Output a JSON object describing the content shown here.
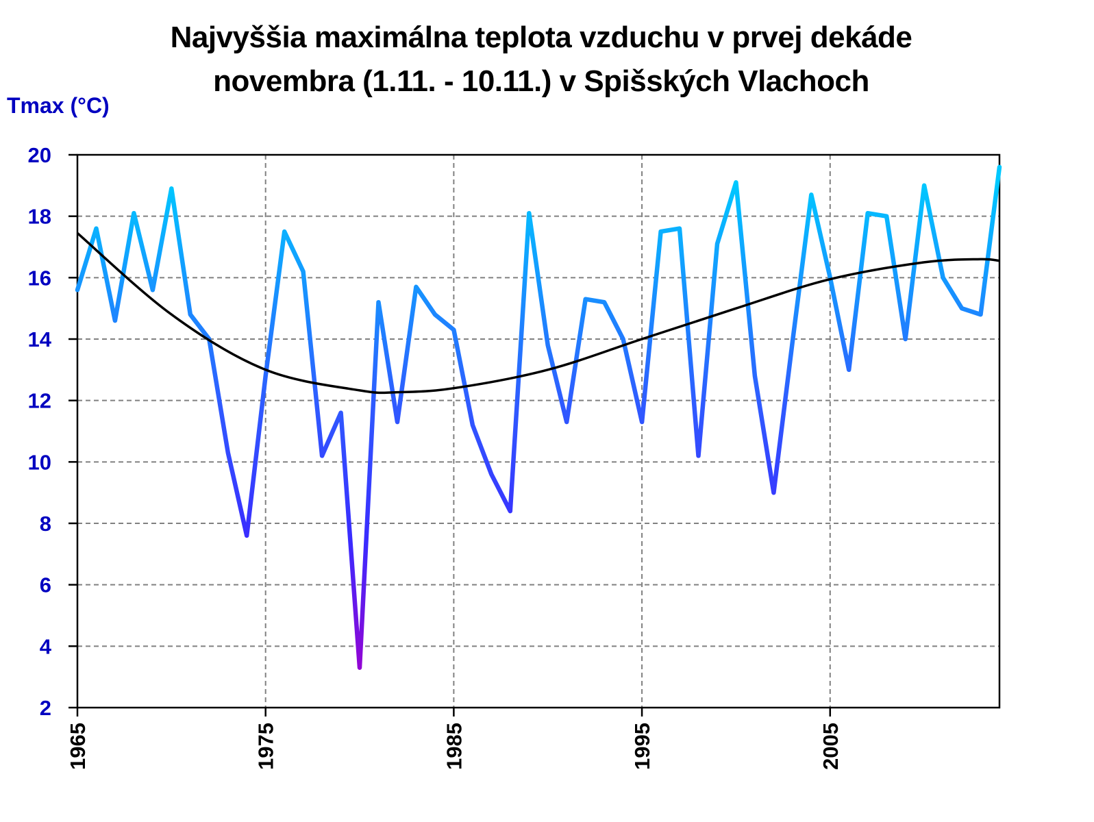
{
  "chart_data": {
    "type": "line",
    "title": [
      "Najvyššia maximálna teplota vzduchu v prvej dekáde",
      "novembra (1.11. - 10.11.) v Spišských Vlachoch"
    ],
    "xlabel": "",
    "ylabel": "Tmax (°C)",
    "xlim": [
      1965,
      2014
    ],
    "ylim": [
      2,
      20
    ],
    "yticks": [
      2,
      4,
      6,
      8,
      10,
      12,
      14,
      16,
      18,
      20
    ],
    "xticks": [
      1965,
      1975,
      1985,
      1995,
      2005
    ],
    "grid": true,
    "legend": "none",
    "x": [
      1965,
      1966,
      1967,
      1968,
      1969,
      1970,
      1971,
      1972,
      1973,
      1974,
      1975,
      1976,
      1977,
      1978,
      1979,
      1980,
      1981,
      1982,
      1983,
      1984,
      1985,
      1986,
      1987,
      1988,
      1989,
      1990,
      1991,
      1992,
      1993,
      1994,
      1995,
      1996,
      1997,
      1998,
      1999,
      2000,
      2001,
      2002,
      2003,
      2004,
      2005,
      2006,
      2007,
      2008,
      2009,
      2010,
      2011,
      2012,
      2013,
      2014
    ],
    "series": [
      {
        "name": "Tmax",
        "values": [
          15.6,
          17.6,
          14.6,
          18.1,
          15.6,
          18.9,
          14.8,
          14.0,
          10.3,
          7.6,
          12.8,
          17.5,
          16.2,
          10.2,
          11.6,
          3.3,
          15.2,
          11.3,
          15.7,
          14.8,
          14.3,
          11.2,
          9.6,
          8.4,
          18.1,
          13.8,
          11.3,
          15.3,
          15.2,
          14.0,
          11.3,
          17.5,
          17.6,
          10.2,
          17.1,
          19.1,
          12.8,
          9.0,
          13.9,
          18.7,
          16.0,
          13.0,
          18.1,
          18.0,
          14.0,
          19.0,
          16.0,
          15.0,
          14.8,
          19.6
        ],
        "gradient_colors": [
          "#00C8FF",
          "#2F5BFF",
          "#3A2BFF",
          "#9B00D0"
        ]
      },
      {
        "name": "Trend",
        "x": [
          1965,
          1970,
          1975,
          1980,
          1982,
          1985,
          1990,
          1995,
          2000,
          2005,
          2010,
          2013,
          2014
        ],
        "values": [
          17.45,
          14.8,
          13.0,
          12.33,
          12.27,
          12.4,
          13.0,
          14.0,
          15.0,
          15.95,
          16.5,
          16.6,
          16.55
        ],
        "color": "#000000"
      }
    ]
  }
}
